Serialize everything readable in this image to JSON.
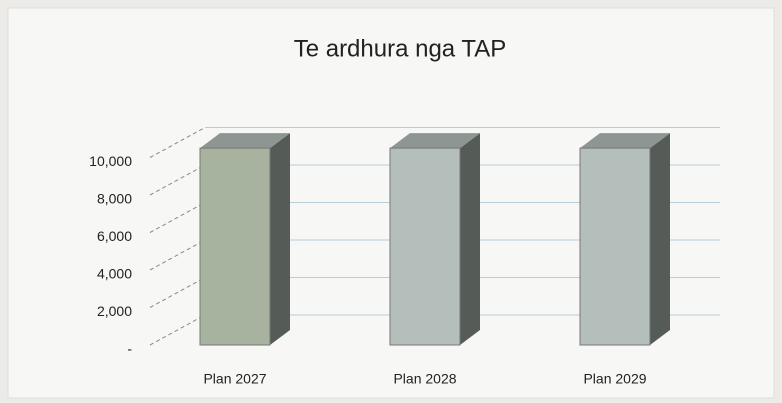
{
  "chart_data": {
    "type": "bar3d",
    "title": "Te ardhura nga TAP",
    "categories": [
      "Plan 2027",
      "Plan 2028",
      "Plan 2029"
    ],
    "values": [
      10500,
      10500,
      10500
    ],
    "colors": [
      "#a7b29f",
      "#b4bebb",
      "#b4bebb"
    ],
    "ylim": [
      0,
      12000
    ],
    "yticks": [
      {
        "value": 0,
        "label": "-"
      },
      {
        "value": 2000,
        "label": "2,000"
      },
      {
        "value": 4000,
        "label": "4,000"
      },
      {
        "value": 6000,
        "label": "6,000"
      },
      {
        "value": 8000,
        "label": "8,000"
      },
      {
        "value": 10000,
        "label": "10,000"
      }
    ],
    "grid": true
  }
}
